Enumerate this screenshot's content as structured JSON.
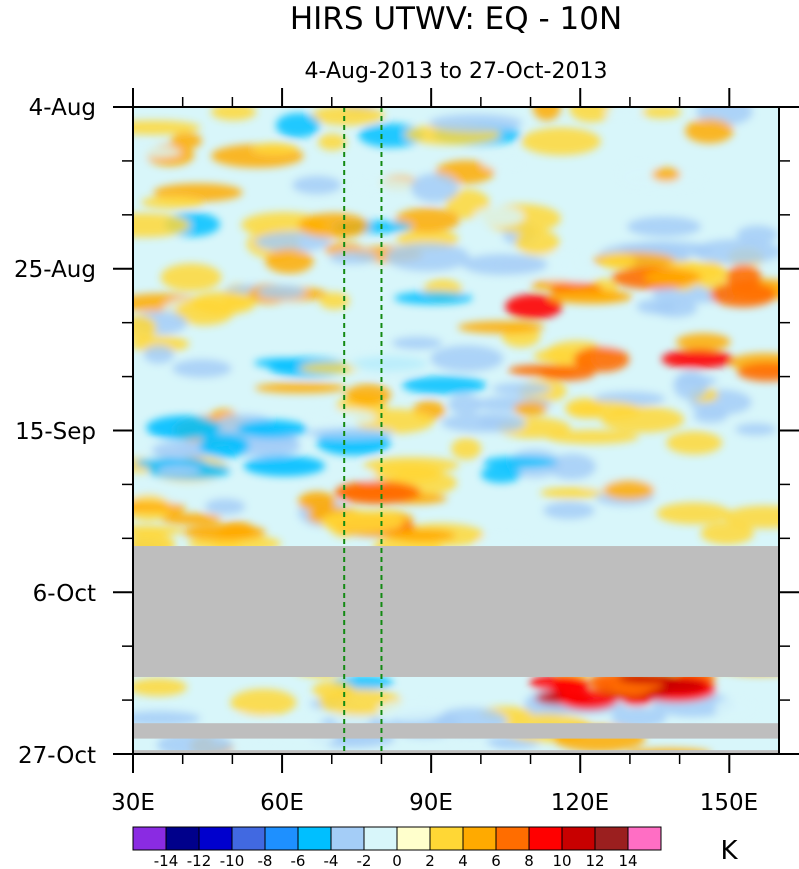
{
  "chart_data": {
    "type": "heatmap",
    "title": "HIRS UTWV: EQ - 10N",
    "subtitle": "4-Aug-2013 to 27-Oct-2013",
    "x_axis": {
      "range": [
        30,
        160
      ],
      "ticks": [
        30,
        60,
        90,
        120,
        150
      ],
      "tick_labels": [
        "30E",
        "60E",
        "90E",
        "120E",
        "150E"
      ]
    },
    "y_axis": {
      "direction": "time increasing downward",
      "ticks_days": [
        0,
        21,
        42,
        63,
        84
      ],
      "tick_labels": [
        "4-Aug",
        "25-Aug",
        "15-Sep",
        "6-Oct",
        "27-Oct"
      ]
    },
    "reference_lines": [
      {
        "longitude": 72.5,
        "style": "dashed",
        "color": "#138a13"
      },
      {
        "longitude": 80,
        "style": "dashed",
        "color": "#138a13"
      }
    ],
    "missing_data": [
      {
        "from_day": 57,
        "to_day": 74
      },
      {
        "from_day": 80,
        "to_day": 82
      },
      {
        "from_day": 83.5,
        "to_day": 84
      }
    ],
    "colorbar": {
      "unit": "K",
      "levels": [
        "-14",
        "-12",
        "-10",
        "-8",
        "-6",
        "-4",
        "-2",
        "0",
        "2",
        "4",
        "6",
        "8",
        "10",
        "12",
        "14"
      ],
      "colors": [
        "#8a2be2",
        "#00008b",
        "#0000cd",
        "#4169e1",
        "#1e90ff",
        "#00bfff",
        "#a4cdf7",
        "#d8f6fa",
        "#ffffcc",
        "#ffd735",
        "#ffaa00",
        "#ff6d00",
        "#ff0000",
        "#c80000",
        "#9b1f1f",
        "#ff6ec4"
      ]
    },
    "features": [
      {
        "lon_from": 110,
        "lon_to": 160,
        "day_from": 21,
        "day_to": 35,
        "anomaly": 8,
        "note": "warm positive anomaly late Aug"
      },
      {
        "lon_from": 30,
        "lon_to": 75,
        "day_from": 40,
        "day_to": 48,
        "anomaly": -6,
        "note": "negative anomaly mid Sep"
      },
      {
        "lon_from": 30,
        "lon_to": 90,
        "day_from": 50,
        "day_to": 57,
        "anomaly": 6,
        "note": "positive anomaly late Sep"
      },
      {
        "lon_from": 110,
        "lon_to": 145,
        "day_from": 74,
        "day_to": 77,
        "anomaly": 10,
        "note": "positive anomaly Oct"
      }
    ]
  }
}
